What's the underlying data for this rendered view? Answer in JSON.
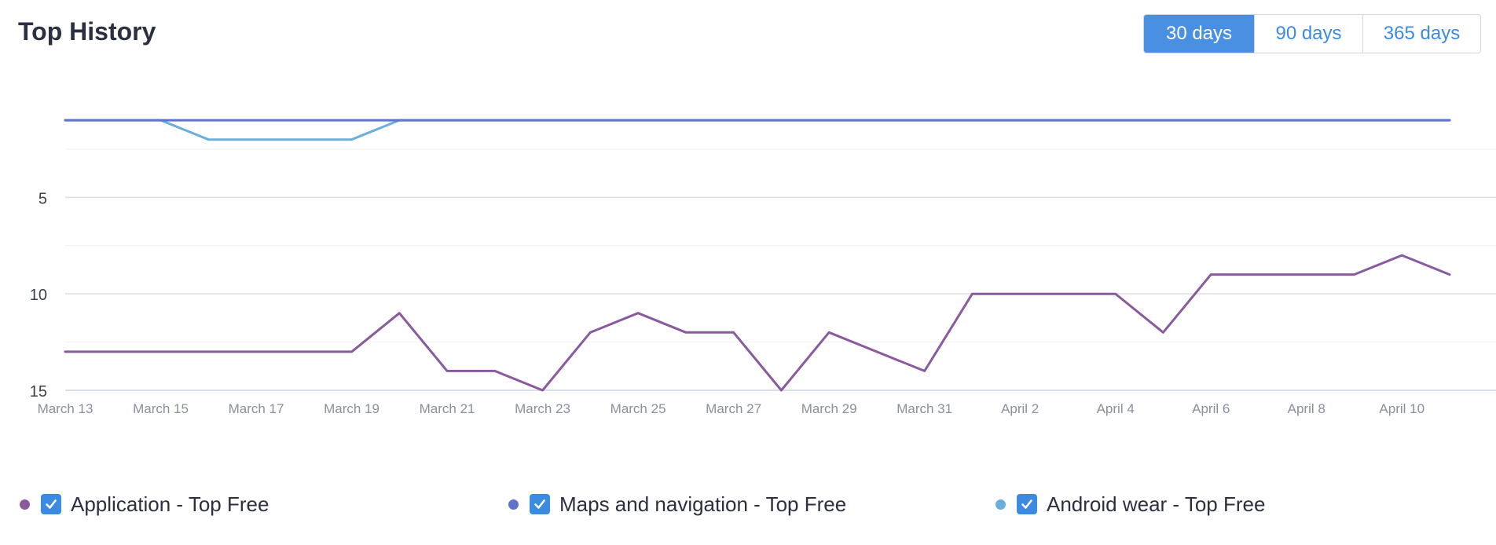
{
  "header": {
    "title": "Top History",
    "ranges": [
      "30 days",
      "90 days",
      "365 days"
    ],
    "active_range": "30 days"
  },
  "colors": {
    "accent": "#4a90e2",
    "grid": "#e3e6ea",
    "tick_text": "#8a9099",
    "axis_text": "#3a3f48"
  },
  "chart_data": {
    "type": "line",
    "title": "",
    "xlabel": "",
    "ylabel": "",
    "y_inverted": true,
    "ylim": [
      15,
      0.1
    ],
    "y_ticks": [
      5,
      10,
      15
    ],
    "grid": true,
    "legend_placement": "bottom",
    "x": [
      "March 13",
      "March 14",
      "March 15",
      "March 16",
      "March 17",
      "March 18",
      "March 19",
      "March 20",
      "March 21",
      "March 22",
      "March 23",
      "March 24",
      "March 25",
      "March 26",
      "March 27",
      "March 28",
      "March 29",
      "March 30",
      "March 31",
      "April 1",
      "April 2",
      "April 3",
      "April 4",
      "April 5",
      "April 6",
      "April 7",
      "April 8",
      "April 9",
      "April 10",
      "April 11"
    ],
    "x_tick_labels": [
      "March 13",
      "March 15",
      "March 17",
      "March 19",
      "March 21",
      "March 23",
      "March 25",
      "March 27",
      "March 29",
      "March 31",
      "April 2",
      "April 4",
      "April 6",
      "April 8",
      "April 10"
    ],
    "series": [
      {
        "name": "Application - Top Free",
        "color": "#8a5a9e",
        "values": [
          13,
          13,
          13,
          13,
          13,
          13,
          13,
          11,
          14,
          14,
          15,
          12,
          11,
          12,
          12,
          15,
          12,
          13,
          14,
          10,
          10,
          10,
          10,
          12,
          9,
          9,
          9,
          9,
          8,
          9
        ]
      },
      {
        "name": "Maps and navigation - Top Free",
        "color": "#6072cf",
        "values": [
          1,
          1,
          1,
          1,
          1,
          1,
          1,
          1,
          1,
          1,
          1,
          1,
          1,
          1,
          1,
          1,
          1,
          1,
          1,
          1,
          1,
          1,
          1,
          1,
          1,
          1,
          1,
          1,
          1,
          1
        ]
      },
      {
        "name": "Android wear - Top Free",
        "color": "#6aaedc",
        "values": [
          1,
          1,
          1,
          2,
          2,
          2,
          2,
          1,
          1,
          1,
          1,
          1,
          1,
          1,
          1,
          1,
          1,
          1,
          1,
          1,
          1,
          1,
          1,
          1,
          1,
          1,
          1,
          1,
          1,
          1
        ]
      }
    ]
  }
}
